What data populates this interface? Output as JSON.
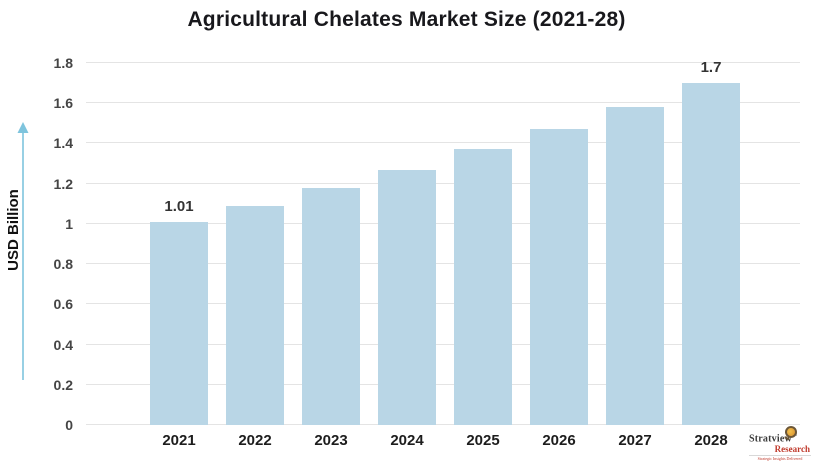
{
  "title": "Agricultural Chelates Market Size (2021-28)",
  "chart_data": {
    "type": "bar",
    "categories": [
      "2021",
      "2022",
      "2023",
      "2024",
      "2025",
      "2026",
      "2027",
      "2028"
    ],
    "values": [
      1.01,
      1.09,
      1.18,
      1.27,
      1.37,
      1.47,
      1.58,
      1.7
    ],
    "data_labels": [
      "1.01",
      "",
      "",
      "",
      "",
      "",
      "",
      "1.7"
    ],
    "title": "Agricultural Chelates Market Size (2021-28)",
    "xlabel": "",
    "ylabel": "USD Billion",
    "ylim": [
      0,
      1.8
    ],
    "ytick_step": 0.2,
    "yticks": [
      "0",
      "0.2",
      "0.4",
      "0.6",
      "0.8",
      "1",
      "1.2",
      "1.4",
      "1.6",
      "1.8"
    ],
    "grid": true,
    "legend": false,
    "bar_color": "#b9d6e6"
  },
  "colors": {
    "bar_fill": "#b9d6e6",
    "gridline": "#e4e4e4",
    "title_text": "#18181c",
    "axis_text": "#454545",
    "data_label_text": "#333333",
    "arrow": "#7ec4dd",
    "logo_red": "#c0392b"
  },
  "icons": {
    "y_axis_arrow": "up-arrow",
    "logo_magnifier": "magnifier"
  },
  "logo": {
    "brand": "Stratview",
    "trademark": "™",
    "sub_brand": "Research",
    "tagline": "Strategic Insights Delivered"
  }
}
